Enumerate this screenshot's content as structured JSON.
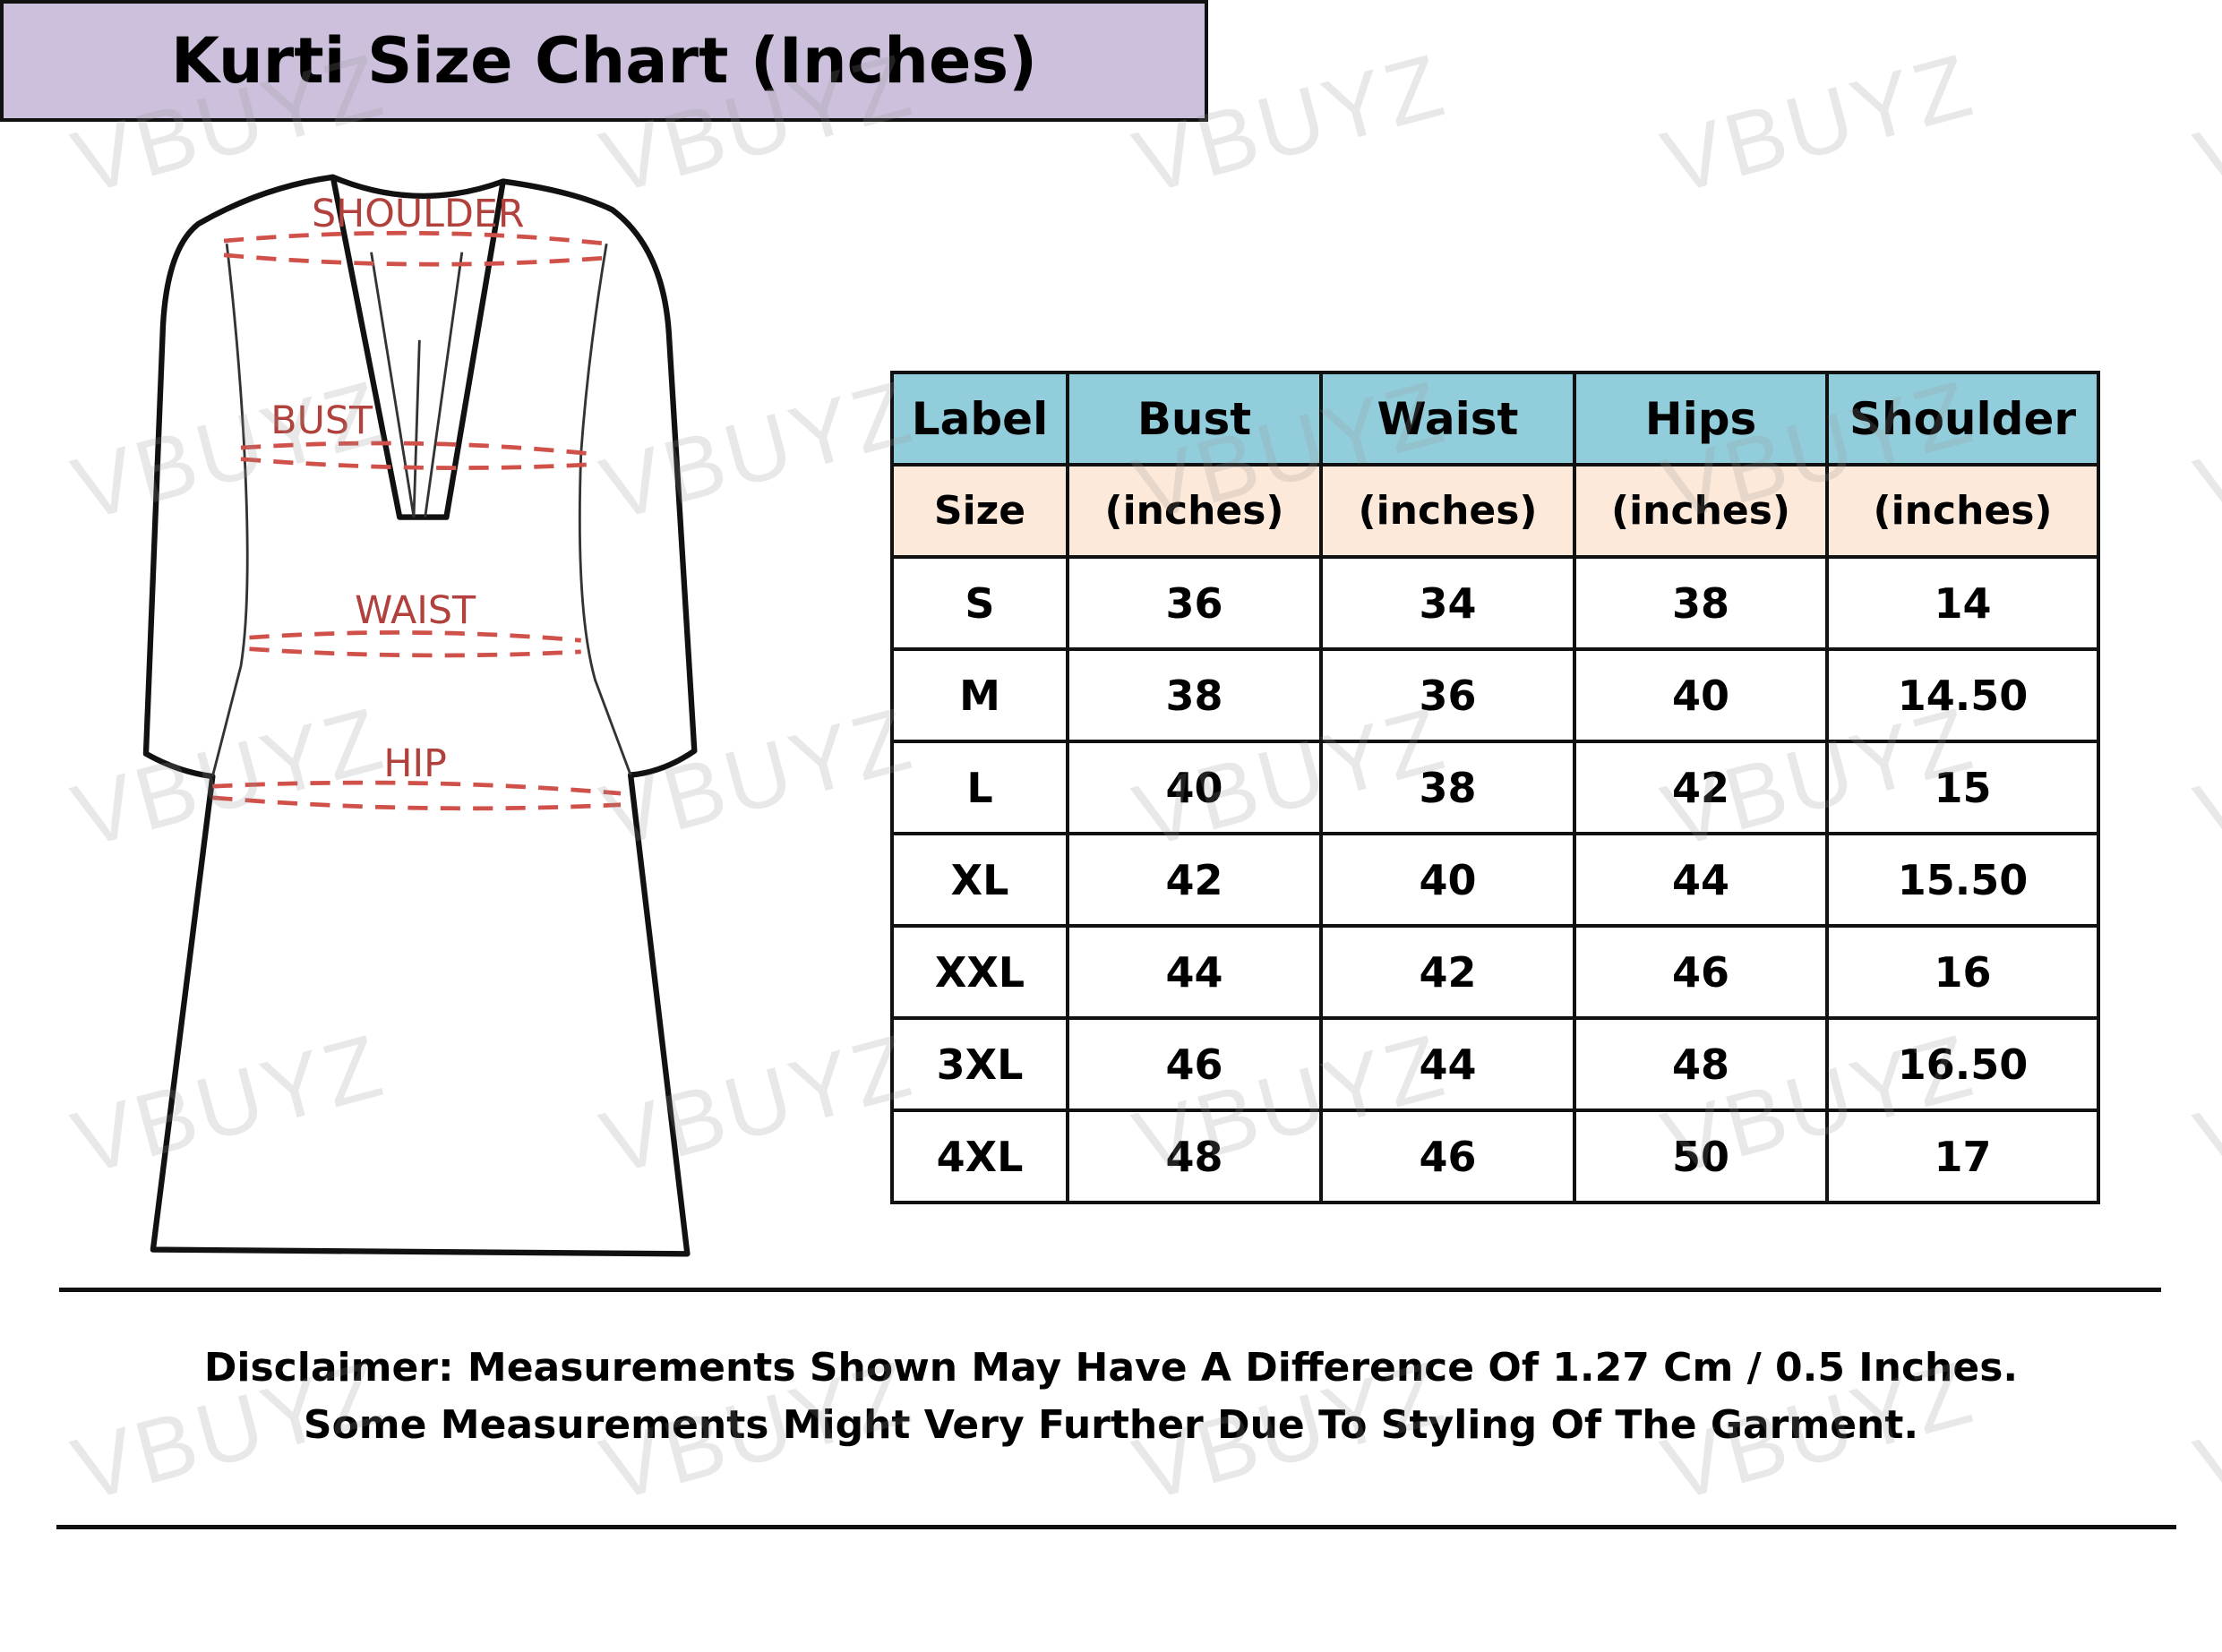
{
  "watermark": "VBUYZ",
  "diagram": {
    "labels": {
      "shoulder": "SHOULDER",
      "bust": "BUST",
      "waist": "WAIST",
      "hip": "HIP"
    },
    "measure_line_color": "#c0504d"
  },
  "title": "Kurti Size Chart (Inches)",
  "colors": {
    "title_bg": "#cdc0dc",
    "header_bg": "#92cddc",
    "subheader_bg": "#fde9d9"
  },
  "table": {
    "header": [
      "Label",
      "Bust",
      "Waist",
      "Hips",
      "Shoulder"
    ],
    "subheader": [
      "Size",
      "(inches)",
      "(inches)",
      "(inches)",
      "(inches)"
    ],
    "rows": [
      [
        "S",
        "36",
        "34",
        "38",
        "14"
      ],
      [
        "M",
        "38",
        "36",
        "40",
        "14.50"
      ],
      [
        "L",
        "40",
        "38",
        "42",
        "15"
      ],
      [
        "XL",
        "42",
        "40",
        "44",
        "15.50"
      ],
      [
        "XXL",
        "44",
        "42",
        "46",
        "16"
      ],
      [
        "3XL",
        "46",
        "44",
        "48",
        "16.50"
      ],
      [
        "4XL",
        "48",
        "46",
        "50",
        "17"
      ]
    ]
  },
  "disclaimer": {
    "line1": "Disclaimer: Measurements Shown May Have A Difference Of 1.27 Cm / 0.5 Inches.",
    "line2": "Some Measurements Might Very Further Due To Styling Of The Garment."
  }
}
